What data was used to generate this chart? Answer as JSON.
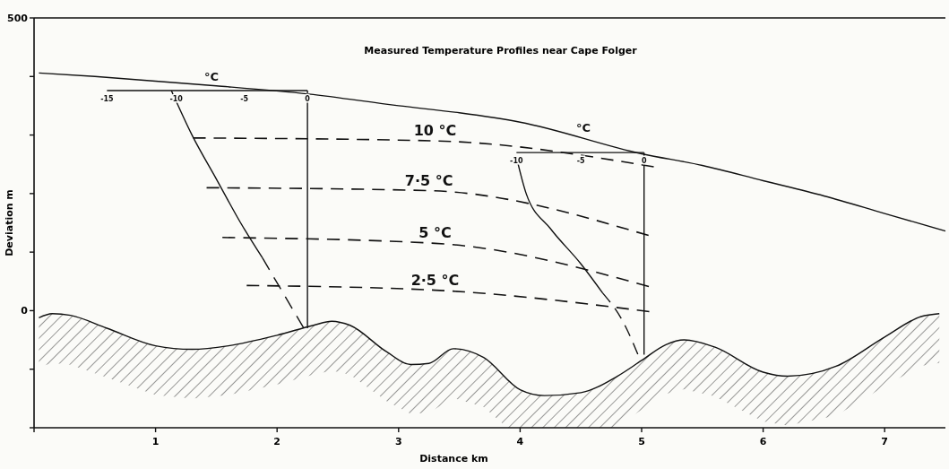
{
  "chart_data": {
    "type": "line",
    "title": "Measured Temperature Profiles near Cape Folger",
    "xlabel": "Distance km",
    "ylabel": "Deviation m",
    "xlim": [
      0,
      7.5
    ],
    "ylim": [
      -200,
      500
    ],
    "xticks": [
      {
        "value": 0,
        "label": null
      },
      1,
      2,
      3,
      4,
      5,
      6,
      7
    ],
    "yticks": [
      {
        "value": -200,
        "label": null
      },
      {
        "value": -100,
        "label": null
      },
      0,
      {
        "value": 100,
        "label": null
      },
      {
        "value": 200,
        "label": null
      },
      {
        "value": 300,
        "label": null
      },
      {
        "value": 400,
        "label": null
      },
      500
    ],
    "grid": false,
    "marker": "none",
    "series": [
      {
        "color": "#111111",
        "line_style": "solid",
        "x": [
          0.04,
          0.5,
          1.0,
          1.5,
          2.26,
          3.0,
          3.5,
          4.0,
          5.0,
          5.5,
          6.0,
          6.5,
          7.0,
          7.5
        ],
        "values": [
          406,
          400,
          392,
          384,
          370,
          350,
          338,
          322,
          268,
          248,
          222,
          196,
          166,
          136
        ]
      },
      {
        "color": "#111111",
        "line_style": "solid",
        "x": [
          0.04,
          0.15,
          0.3,
          0.6,
          1.0,
          1.3,
          1.6,
          2.0,
          2.3,
          2.45,
          2.6,
          2.9,
          3.1,
          3.25,
          3.45,
          3.7,
          4.0,
          4.2,
          4.5,
          4.8,
          5.0,
          5.2,
          5.35,
          5.6,
          6.0,
          6.2,
          6.6,
          7.0,
          7.3,
          7.45
        ],
        "values": [
          -12,
          -5,
          -8,
          -30,
          -60,
          -66,
          -60,
          -42,
          -25,
          -18,
          -25,
          -70,
          -92,
          -90,
          -65,
          -80,
          -135,
          -145,
          -140,
          -112,
          -85,
          -58,
          -50,
          -62,
          -105,
          -112,
          -95,
          -45,
          -10,
          -5
        ]
      },
      {
        "name": "10 °C",
        "color": "#111111",
        "line_style": "dashed",
        "x": [
          1.31,
          3.3,
          5.12
        ],
        "values": [
          295,
          290,
          245
        ]
      },
      {
        "name": "7·5 °C",
        "color": "#111111",
        "line_style": "dashed",
        "x": [
          1.42,
          3.25,
          5.08
        ],
        "values": [
          210,
          205,
          127
        ]
      },
      {
        "name": "5 °C",
        "color": "#111111",
        "line_style": "dashed",
        "x": [
          1.55,
          3.3,
          5.08
        ],
        "values": [
          125,
          115,
          40
        ]
      },
      {
        "name": "2·5 °C",
        "color": "#111111",
        "line_style": "dashed",
        "x": [
          1.75,
          3.3,
          5.08
        ],
        "values": [
          43,
          35,
          -2
        ]
      },
      {
        "color": "#111111",
        "line_style": "solid",
        "x": [
          1.13,
          1.3,
          1.5,
          1.7,
          1.88
        ],
        "values": [
          376,
          300,
          225,
          150,
          90
        ]
      },
      {
        "color": "#111111",
        "line_style": "dashed",
        "x": [
          1.88,
          2.05,
          2.22
        ],
        "values": [
          90,
          30,
          -30
        ]
      },
      {
        "color": "#111111",
        "line_style": "solid",
        "x": [
          2.25,
          2.25
        ],
        "values": [
          376,
          -30
        ]
      },
      {
        "color": "#111111",
        "line_style": "solid",
        "x": [
          0.6,
          2.25
        ],
        "values": [
          376,
          376
        ]
      },
      {
        "color": "#111111",
        "line_style": "solid",
        "x": [
          3.97,
          4.05,
          4.25,
          4.5,
          4.68
        ],
        "values": [
          262,
          200,
          140,
          80,
          30
        ]
      },
      {
        "color": "#111111",
        "line_style": "dashed",
        "x": [
          4.68,
          4.85,
          4.97
        ],
        "values": [
          30,
          -20,
          -75
        ]
      },
      {
        "color": "#111111",
        "line_style": "solid",
        "x": [
          5.02,
          5.02
        ],
        "values": [
          270,
          -75
        ]
      },
      {
        "color": "#111111",
        "line_style": "solid",
        "x": [
          3.97,
          5.02
        ],
        "values": [
          270,
          270
        ]
      }
    ],
    "annotations": [
      {
        "text": "-15",
        "x": 0.6,
        "y": 376
      },
      {
        "text": "-10",
        "x": 1.17,
        "y": 376
      },
      {
        "text": "-5",
        "x": 1.73,
        "y": 376
      },
      {
        "text": "0",
        "x": 2.25,
        "y": 376
      },
      {
        "text": "°C",
        "x": 1.46,
        "y": 384
      },
      {
        "text": "-10",
        "x": 3.97,
        "y": 270
      },
      {
        "text": "-5",
        "x": 4.5,
        "y": 270
      },
      {
        "text": "0",
        "x": 5.02,
        "y": 270
      },
      {
        "text": "°C",
        "x": 4.52,
        "y": 296
      }
    ]
  }
}
